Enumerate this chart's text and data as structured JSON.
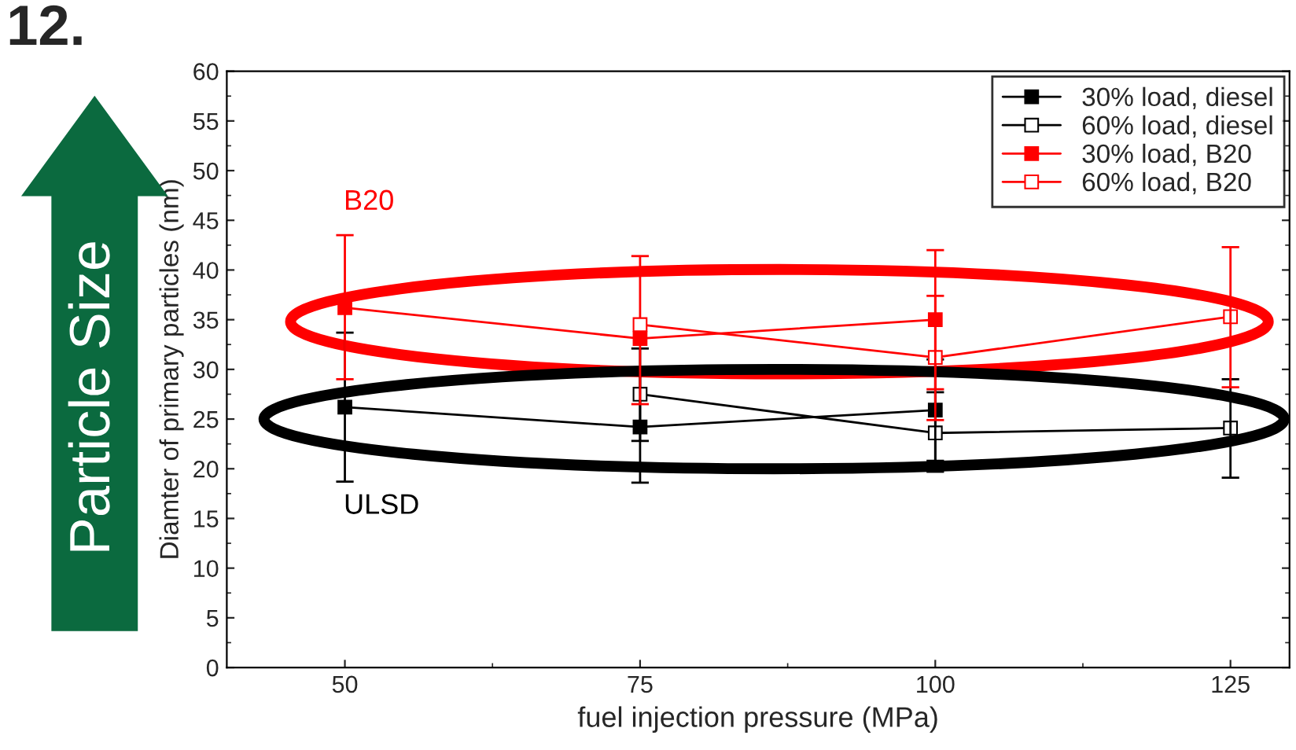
{
  "chart_data": {
    "type": "line",
    "xlabel": "fuel injection pressure (MPa)",
    "ylabel": "Diamter of primary particles (nm)",
    "x": [
      50,
      75,
      100,
      125
    ],
    "xlim": [
      40,
      130
    ],
    "xticks": [
      50,
      75,
      100,
      125
    ],
    "ylim": [
      0,
      60
    ],
    "yticks": [
      0,
      5,
      10,
      15,
      20,
      25,
      30,
      35,
      40,
      45,
      50,
      55,
      60
    ],
    "marker": "square",
    "line_style": "solid",
    "grid": false,
    "legend": "top right",
    "series": [
      {
        "name": "30% load, diesel",
        "color": "#000000",
        "values": [
          26.2,
          24.2,
          25.9,
          null
        ],
        "errors": [
          [
            18.7,
            33.7
          ],
          [
            18.6,
            29.8
          ],
          [
            20.8,
            31.0
          ],
          null
        ]
      },
      {
        "name": "60% load, diesel",
        "color": "#000000",
        "values": [
          null,
          27.5,
          23.6,
          24.1
        ],
        "errors": [
          null,
          [
            22.8,
            32.1
          ],
          [
            19.7,
            27.7
          ],
          [
            19.1,
            29.0
          ]
        ]
      },
      {
        "name": "30% load, B20",
        "color": "#ff0000",
        "values": [
          36.2,
          33.1,
          35.0,
          null
        ],
        "errors": [
          [
            29.0,
            43.5
          ],
          [
            26.5,
            41.4
          ],
          [
            28.0,
            42.0
          ],
          null
        ]
      },
      {
        "name": "60% load, B20",
        "color": "#ff0000",
        "values": [
          null,
          34.5,
          31.2,
          35.3
        ],
        "errors": [
          null,
          null,
          [
            24.9,
            37.4
          ],
          [
            28.2,
            42.3
          ]
        ]
      }
    ],
    "annotations": [
      "B20",
      "ULSD",
      "Particle Size",
      "12."
    ]
  }
}
